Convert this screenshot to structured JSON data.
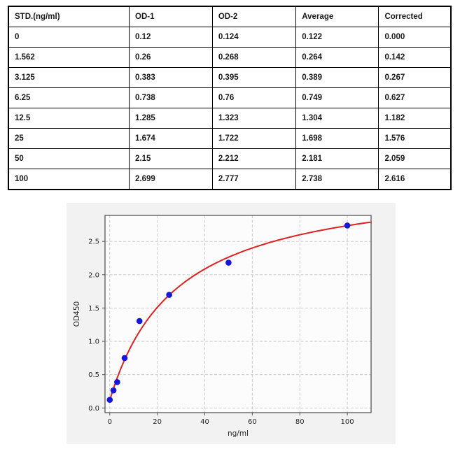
{
  "table": {
    "columns": [
      "STD.(ng/ml)",
      "OD-1",
      "OD-2",
      "Average",
      "Corrected"
    ],
    "rows": [
      [
        "0",
        "0.12",
        "0.124",
        "0.122",
        "0.000"
      ],
      [
        "1.562",
        "0.26",
        "0.268",
        "0.264",
        "0.142"
      ],
      [
        "3.125",
        "0.383",
        "0.395",
        "0.389",
        "0.267"
      ],
      [
        "6.25",
        "0.738",
        "0.76",
        "0.749",
        "0.627"
      ],
      [
        "12.5",
        "1.285",
        "1.323",
        "1.304",
        "1.182"
      ],
      [
        "25",
        "1.674",
        "1.722",
        "1.698",
        "1.576"
      ],
      [
        "50",
        "2.15",
        "2.212",
        "2.181",
        "2.059"
      ],
      [
        "100",
        "2.699",
        "2.777",
        "2.738",
        "2.616"
      ]
    ]
  },
  "chart_data": {
    "type": "scatter",
    "x": [
      0,
      1.562,
      3.125,
      6.25,
      12.5,
      25,
      50,
      100
    ],
    "y": [
      0.122,
      0.264,
      0.389,
      0.749,
      1.304,
      1.698,
      2.181,
      2.738
    ],
    "fit_curve": {
      "model": "saturation",
      "formula": "y = c + a*x/(b+x)",
      "a": 3.36,
      "b": 28.2,
      "c": 0.115,
      "x_start": 0,
      "x_end": 110
    },
    "title": "",
    "xlabel": "ng/ml",
    "ylabel": "OD450",
    "xlim": [
      -2,
      110
    ],
    "ylim": [
      -0.07,
      2.89
    ],
    "xticks": [
      0,
      20,
      40,
      60,
      80,
      100
    ],
    "xtick_labels": [
      "0",
      "20",
      "40",
      "60",
      "80",
      "100"
    ],
    "yticks": [
      0,
      0.5,
      1.0,
      1.5,
      2.0,
      2.5
    ],
    "ytick_labels": [
      "0.0",
      "0.5",
      "1.0",
      "1.5",
      "2.0",
      "2.5"
    ],
    "grid": true,
    "legend": "none",
    "colors": {
      "point": "#1515dd",
      "curve": "#dd2222",
      "figure_bg": "#f2f2f2",
      "plot_bg": "#fcfcfc",
      "grid_line": "#c7c7c7",
      "axis_border": "#555555",
      "tick_text": "#262626"
    }
  }
}
